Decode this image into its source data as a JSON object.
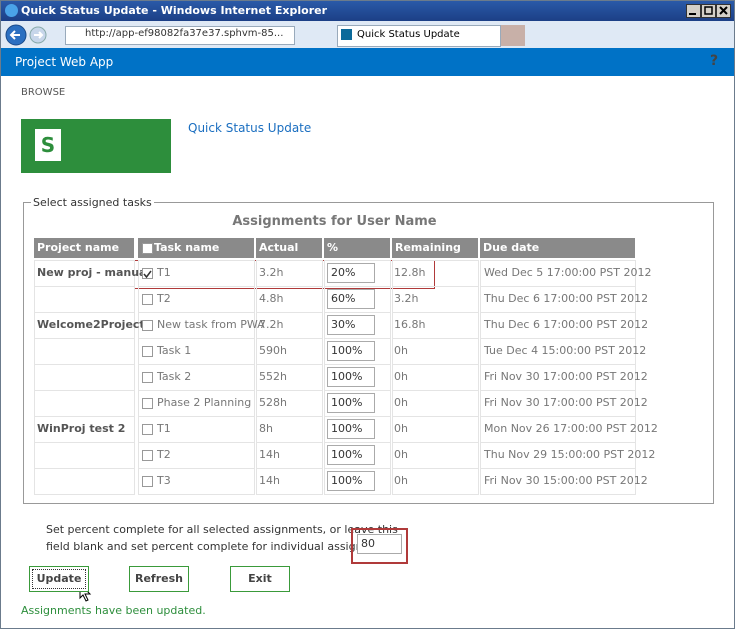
{
  "window": {
    "title": "Quick Status Update - Windows Internet Explorer"
  },
  "browser": {
    "url": "http://app-ef98082fa37e37.sphvm-85...",
    "tab": "Quick Status Update"
  },
  "suite_bar": {
    "title": "Project Web App",
    "help": "?"
  },
  "ribbon": {
    "tab": "BROWSE"
  },
  "page": {
    "logo": "S",
    "title": "Quick Status Update"
  },
  "fieldset": {
    "legend": "Select assigned tasks"
  },
  "table": {
    "caption": "Assignments for User Name",
    "headers": [
      "Project name",
      "Task name",
      "Actual work",
      "% complete",
      "Remaining work",
      "Due date"
    ],
    "rows": [
      {
        "project": "New proj - manual",
        "checked": true,
        "task": "T1",
        "actual": "3.2h",
        "percent": "20%",
        "remaining": "12.8h",
        "due": "Wed Dec 5 17:00:00 PST 2012"
      },
      {
        "project": null,
        "checked": false,
        "task": "T2",
        "actual": "4.8h",
        "percent": "60%",
        "remaining": "3.2h",
        "due": "Thu Dec 6 17:00:00 PST 2012"
      },
      {
        "project": "Welcome2Project",
        "checked": false,
        "task": "New task from PWA",
        "actual": "7.2h",
        "percent": "30%",
        "remaining": "16.8h",
        "due": "Thu Dec 6 17:00:00 PST 2012"
      },
      {
        "project": null,
        "checked": false,
        "task": "Task 1",
        "actual": "590h",
        "percent": "100%",
        "remaining": "0h",
        "due": "Tue Dec 4 15:00:00 PST 2012"
      },
      {
        "project": null,
        "checked": false,
        "task": "Task 2",
        "actual": "552h",
        "percent": "100%",
        "remaining": "0h",
        "due": "Fri Nov 30 17:00:00 PST 2012"
      },
      {
        "project": null,
        "checked": false,
        "task": "Phase 2 Planning",
        "actual": "528h",
        "percent": "100%",
        "remaining": "0h",
        "due": "Fri Nov 30 17:00:00 PST 2012"
      },
      {
        "project": "WinProj test 2",
        "checked": false,
        "task": "T1",
        "actual": "8h",
        "percent": "100%",
        "remaining": "0h",
        "due": "Mon Nov 26 17:00:00 PST 2012"
      },
      {
        "project": null,
        "checked": false,
        "task": "T2",
        "actual": "14h",
        "percent": "100%",
        "remaining": "0h",
        "due": "Thu Nov 29 15:00:00 PST 2012"
      },
      {
        "project": null,
        "checked": false,
        "task": "T3",
        "actual": "14h",
        "percent": "100%",
        "remaining": "0h",
        "due": "Fri Nov 30 15:00:00 PST 2012"
      }
    ]
  },
  "bulk": {
    "label_line1": "Set percent complete for all selected assignments, or leave this",
    "label_line2": "field blank and set percent complete for individual assignments:",
    "value": "80"
  },
  "buttons": [
    "Update",
    "Refresh",
    "Exit"
  ],
  "status": "Assignments have been updated."
}
